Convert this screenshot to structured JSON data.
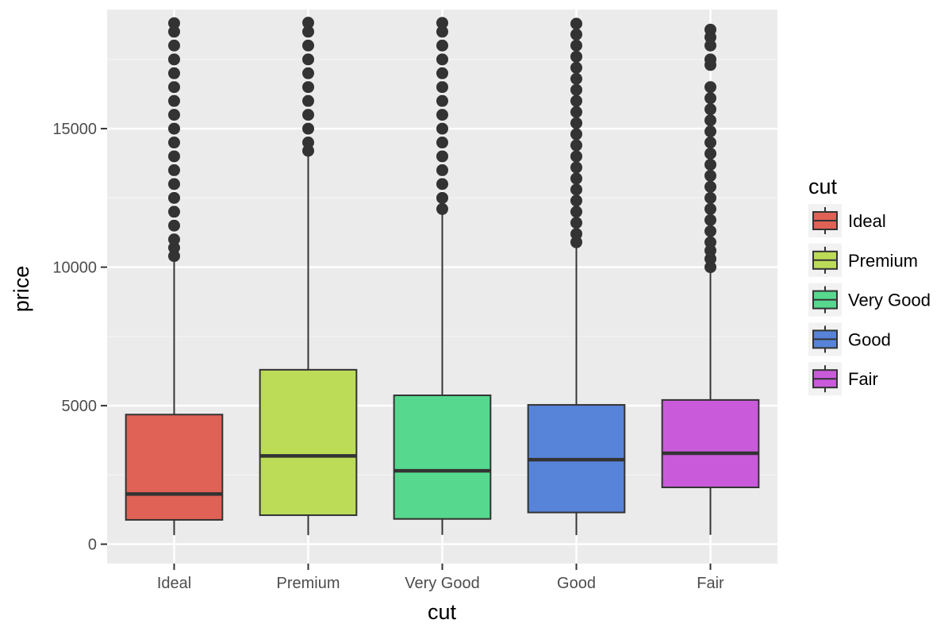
{
  "chart_data": {
    "type": "boxplot",
    "title": "",
    "xlabel": "cut",
    "ylabel": "price",
    "ylim": [
      -700,
      19300
    ],
    "yticks": [
      0,
      5000,
      10000,
      15000
    ],
    "ytick_labels": [
      "0",
      "5000",
      "10000",
      "15000"
    ],
    "categories": [
      "Ideal",
      "Premium",
      "Very Good",
      "Good",
      "Fair"
    ],
    "grid": true,
    "legend": {
      "title": "cut",
      "position": "right"
    },
    "series": [
      {
        "name": "Ideal",
        "color": "#e06156",
        "whisker_low": 326,
        "q1": 878,
        "median": 1810,
        "q3": 4678,
        "whisker_high": 10380,
        "outliers": [
          10400,
          10700,
          11000,
          11500,
          12000,
          12500,
          13000,
          13500,
          14000,
          14500,
          15000,
          15500,
          16000,
          16500,
          17000,
          17500,
          18000,
          18500,
          18806
        ]
      },
      {
        "name": "Premium",
        "color": "#bcdc58",
        "whisker_low": 326,
        "q1": 1046,
        "median": 3185,
        "q3": 6296,
        "whisker_high": 14170,
        "outliers": [
          14200,
          14500,
          15000,
          15500,
          16000,
          16500,
          17000,
          17500,
          18000,
          18500,
          18823
        ]
      },
      {
        "name": "Very Good",
        "color": "#56d98f",
        "whisker_low": 336,
        "q1": 912,
        "median": 2648,
        "q3": 5373,
        "whisker_high": 12060,
        "outliers": [
          12100,
          12500,
          13000,
          13500,
          14000,
          14500,
          15000,
          15500,
          16000,
          16500,
          17000,
          17500,
          18000,
          18500,
          18818
        ]
      },
      {
        "name": "Good",
        "color": "#5784d9",
        "whisker_low": 327,
        "q1": 1145,
        "median": 3051,
        "q3": 5028,
        "whisker_high": 10840,
        "outliers": [
          10900,
          11200,
          11600,
          12000,
          12400,
          12800,
          13200,
          13600,
          14000,
          14400,
          14800,
          15200,
          15600,
          16000,
          16400,
          16800,
          17200,
          17600,
          18000,
          18400,
          18788
        ]
      },
      {
        "name": "Fair",
        "color": "#c95bdb",
        "whisker_low": 337,
        "q1": 2050,
        "median": 3282,
        "q3": 5206,
        "whisker_high": 9990,
        "outliers": [
          10000,
          10300,
          10600,
          10900,
          11300,
          11700,
          12100,
          12500,
          12900,
          13300,
          13700,
          14100,
          14500,
          14900,
          15300,
          15700,
          16100,
          16500,
          17300,
          17500,
          18000,
          18300,
          18574
        ]
      }
    ]
  }
}
